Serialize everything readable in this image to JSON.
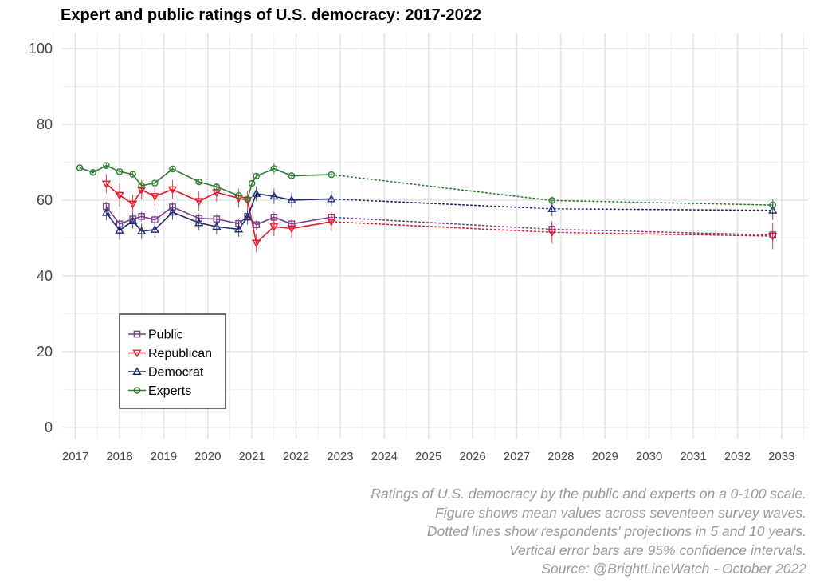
{
  "title": "Expert and public ratings of U.S. democracy: 2017-2022",
  "caption": [
    "Ratings of U.S. democracy by the public and experts on a 0-100 scale.",
    "Figure shows mean values across seventeen survey waves.",
    "Dotted lines show respondents' projections in 5 and 10 years.",
    "Vertical error bars are 95% confidence intervals.",
    "Source: @BrightLineWatch - October 2022"
  ],
  "chart_data": {
    "type": "line",
    "title": "Expert and public ratings of U.S. democracy: 2017-2022",
    "xlabel": "",
    "ylabel": "",
    "xlim": [
      2016.7,
      2033.6
    ],
    "ylim": [
      -3,
      104
    ],
    "x_ticks": [
      "2017",
      "2018",
      "2019",
      "2020",
      "2021",
      "2022",
      "2023",
      "2024",
      "2025",
      "2026",
      "2027",
      "2028",
      "2029",
      "2030",
      "2031",
      "2032",
      "2033"
    ],
    "y_ticks": [
      0,
      20,
      40,
      60,
      80,
      100
    ],
    "grid": true,
    "legend_position": "lower-left",
    "series": [
      {
        "name": "Public",
        "color": "#7b3f8f",
        "marker": "square",
        "points": [
          [
            2017.7,
            58.3
          ],
          [
            2018.0,
            53.7
          ],
          [
            2018.3,
            55.0
          ],
          [
            2018.5,
            55.7
          ],
          [
            2018.8,
            54.8
          ],
          [
            2019.2,
            58.2
          ],
          [
            2019.8,
            55.2
          ],
          [
            2020.2,
            55.0
          ],
          [
            2020.7,
            53.8
          ],
          [
            2020.9,
            55.7
          ],
          [
            2021.1,
            53.5
          ],
          [
            2021.5,
            55.5
          ],
          [
            2021.9,
            53.7
          ],
          [
            2022.8,
            55.5
          ]
        ],
        "error": [
          1.3,
          1.3,
          1.3,
          1.3,
          1.3,
          1.3,
          1.3,
          1.3,
          1.3,
          1.3,
          1.3,
          1.3,
          1.3,
          1.3
        ],
        "projection": [
          [
            2022.8,
            55.5
          ],
          [
            2027.8,
            52.3
          ],
          [
            2032.8,
            50.8
          ]
        ],
        "projection_error": [
          1.5,
          1.5
        ]
      },
      {
        "name": "Republican",
        "color": "#e8172b",
        "marker": "triangle-down",
        "points": [
          [
            2017.7,
            64.3
          ],
          [
            2018.0,
            61.3
          ],
          [
            2018.3,
            59.0
          ],
          [
            2018.5,
            62.7
          ],
          [
            2018.8,
            61.0
          ],
          [
            2019.2,
            62.8
          ],
          [
            2019.8,
            59.7
          ],
          [
            2020.2,
            62.0
          ],
          [
            2020.7,
            60.5
          ],
          [
            2020.9,
            60.0
          ],
          [
            2021.1,
            48.7
          ],
          [
            2021.5,
            53.0
          ],
          [
            2021.9,
            52.5
          ],
          [
            2022.8,
            54.3
          ]
        ],
        "error": [
          2.5,
          3.0,
          2.5,
          2.5,
          2.5,
          2.5,
          2.5,
          2.5,
          2.5,
          2.5,
          2.5,
          2.5,
          2.5,
          2.5
        ],
        "projection": [
          [
            2022.8,
            54.3
          ],
          [
            2027.8,
            51.5
          ],
          [
            2032.8,
            50.5
          ]
        ],
        "projection_error": [
          3.0,
          3.5
        ]
      },
      {
        "name": "Democrat",
        "color": "#1f2a6e",
        "marker": "triangle-up",
        "points": [
          [
            2017.7,
            56.7
          ],
          [
            2018.0,
            52.0
          ],
          [
            2018.3,
            54.5
          ],
          [
            2018.5,
            51.8
          ],
          [
            2018.8,
            52.2
          ],
          [
            2019.2,
            56.8
          ],
          [
            2019.8,
            54.0
          ],
          [
            2020.2,
            53.0
          ],
          [
            2020.7,
            52.3
          ],
          [
            2020.9,
            55.5
          ],
          [
            2021.1,
            61.7
          ],
          [
            2021.5,
            61.0
          ],
          [
            2021.9,
            60.0
          ],
          [
            2022.8,
            60.3
          ]
        ],
        "error": [
          2.0,
          2.5,
          2.0,
          2.0,
          2.0,
          2.0,
          2.0,
          2.0,
          2.0,
          2.0,
          2.0,
          2.0,
          2.0,
          2.0
        ],
        "projection": [
          [
            2022.8,
            60.3
          ],
          [
            2027.8,
            57.7
          ],
          [
            2032.8,
            57.3
          ]
        ],
        "projection_error": [
          2.0,
          2.5
        ]
      },
      {
        "name": "Experts",
        "color": "#2e7d32",
        "marker": "circle",
        "points": [
          [
            2017.1,
            68.5
          ],
          [
            2017.4,
            67.3
          ],
          [
            2017.7,
            69.1
          ],
          [
            2018.0,
            67.5
          ],
          [
            2018.3,
            66.8
          ],
          [
            2018.5,
            63.8
          ],
          [
            2018.8,
            64.5
          ],
          [
            2019.2,
            68.2
          ],
          [
            2019.8,
            64.8
          ],
          [
            2020.2,
            63.5
          ],
          [
            2020.7,
            61.2
          ],
          [
            2020.9,
            60.2
          ],
          [
            2021.0,
            64.4
          ],
          [
            2021.1,
            66.3
          ],
          [
            2021.5,
            68.3
          ],
          [
            2021.9,
            66.4
          ],
          [
            2022.8,
            66.7
          ]
        ],
        "error": [
          0.8,
          0.8,
          0.8,
          0.8,
          0.8,
          0.8,
          0.8,
          0.8,
          0.8,
          0.8,
          0.8,
          0.8,
          0.8,
          0.8,
          1.5,
          0.8,
          0.8
        ],
        "projection": [
          [
            2022.8,
            66.7
          ],
          [
            2027.8,
            59.9
          ],
          [
            2032.8,
            58.7
          ]
        ],
        "projection_error": [
          1.0,
          1.5
        ]
      }
    ]
  }
}
